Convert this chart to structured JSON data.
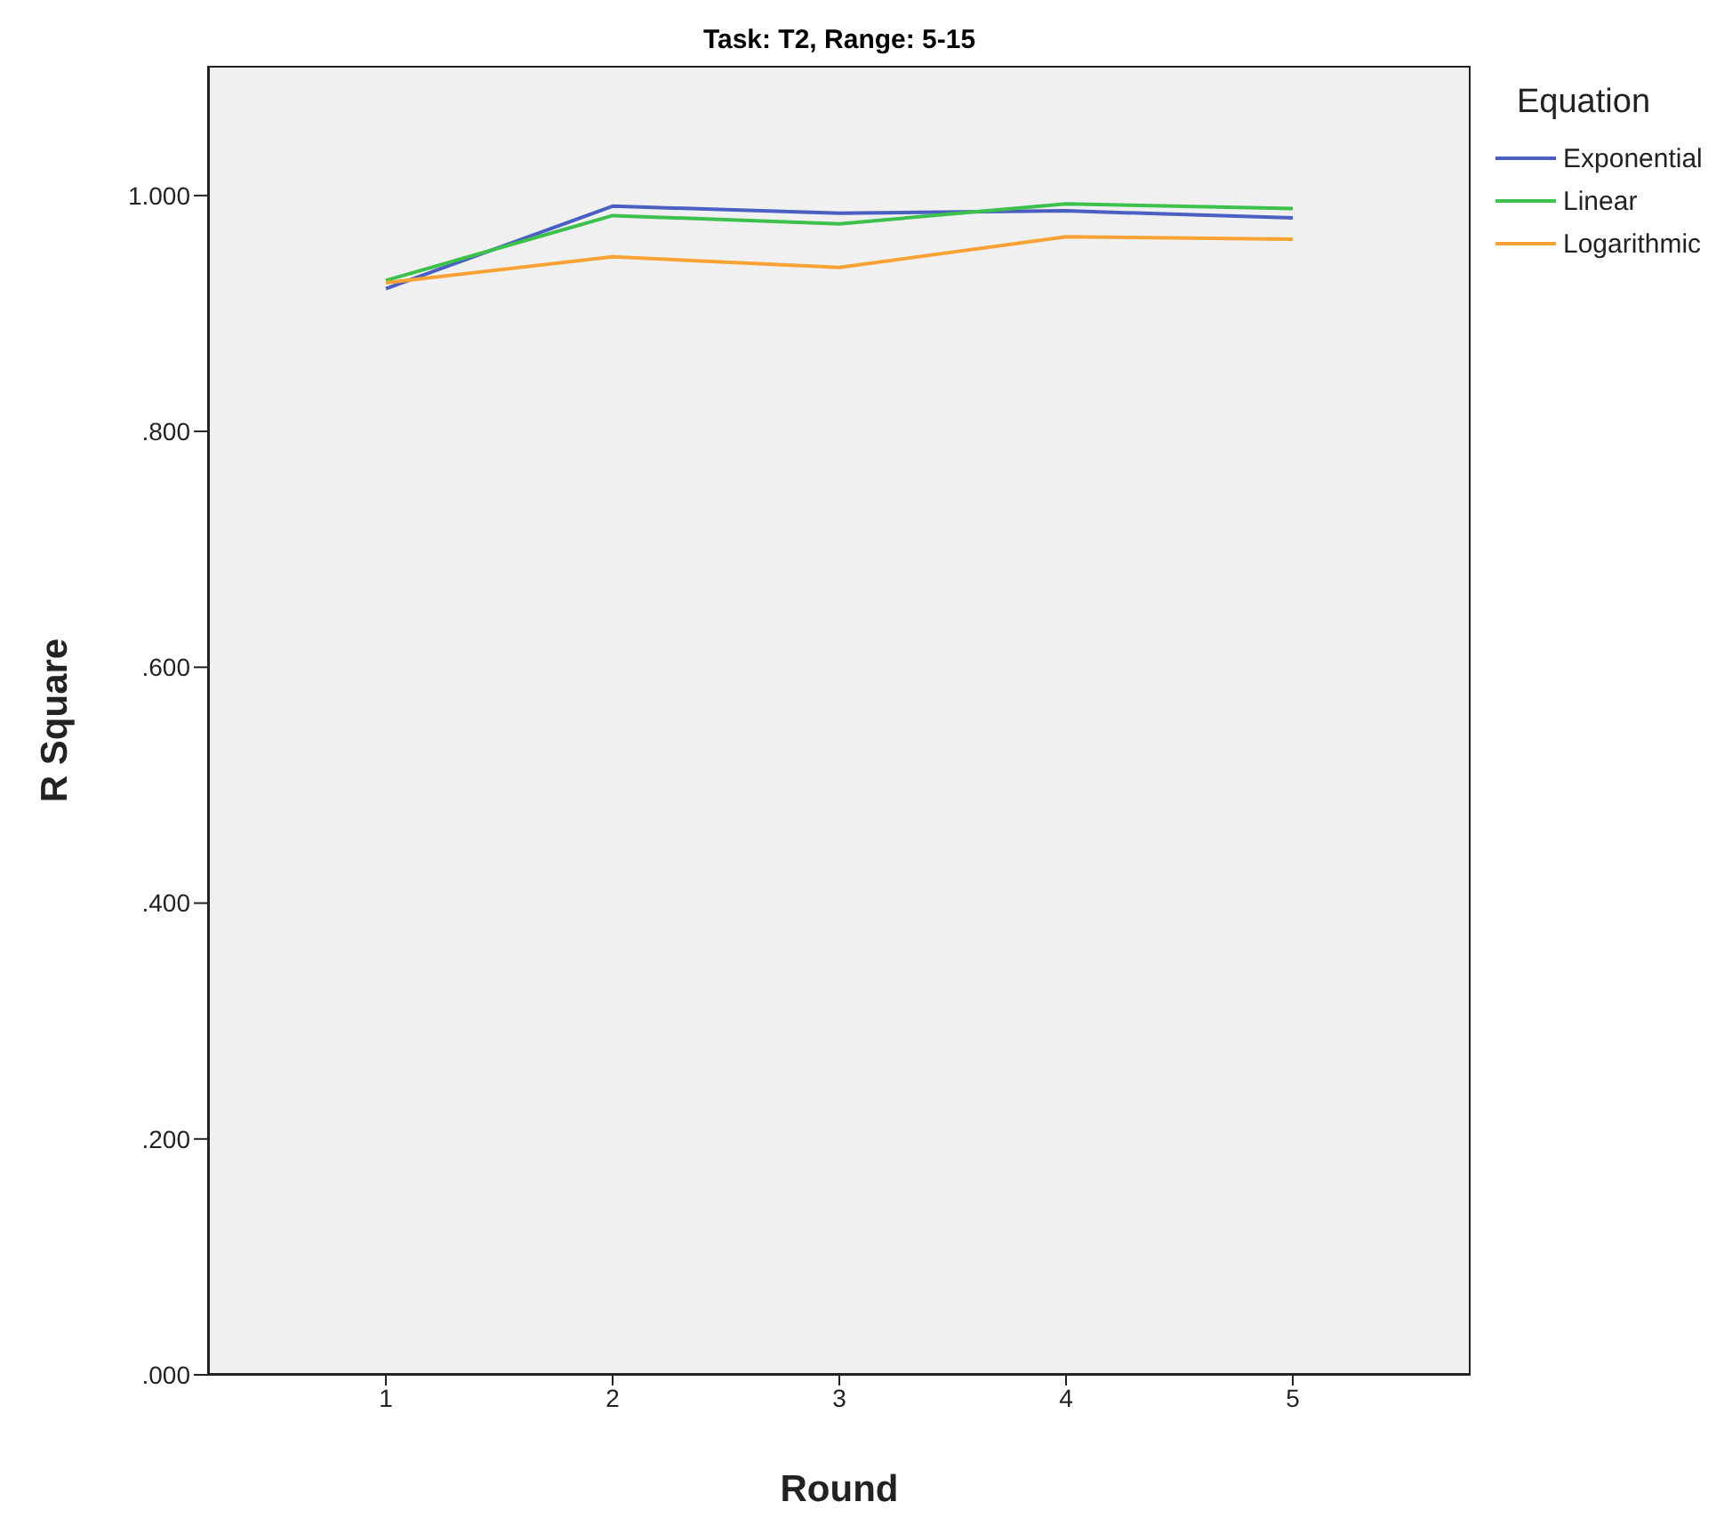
{
  "chart_data": {
    "type": "line",
    "title": "Task: T2, Range: 5-15",
    "xlabel": "Round",
    "ylabel": "R Square",
    "legend_title": "Equation",
    "legend": "top right",
    "marker": "none",
    "line_style": "solid",
    "categories": [
      "1",
      "2",
      "3",
      "4",
      "5"
    ],
    "ylim": [
      0,
      1.11
    ],
    "yticks": [
      {
        "value": 0,
        "label": ".000"
      },
      {
        "value": 0.2,
        "label": ".200"
      },
      {
        "value": 0.4,
        "label": ".400"
      },
      {
        "value": 0.6,
        "label": ".600"
      },
      {
        "value": 0.8,
        "label": ".800"
      },
      {
        "value": 1,
        "label": "1.000"
      }
    ],
    "series": [
      {
        "name": "Exponential",
        "color": "#4a5fc1",
        "values": [
          0.921,
          0.991,
          0.985,
          0.987,
          0.981
        ]
      },
      {
        "name": "Linear",
        "color": "#3dc14d",
        "values": [
          0.928,
          0.983,
          0.976,
          0.993,
          0.989
        ]
      },
      {
        "name": "Logarithmic",
        "color": "#f8a235",
        "values": [
          0.926,
          0.948,
          0.939,
          0.965,
          0.963
        ]
      }
    ]
  }
}
